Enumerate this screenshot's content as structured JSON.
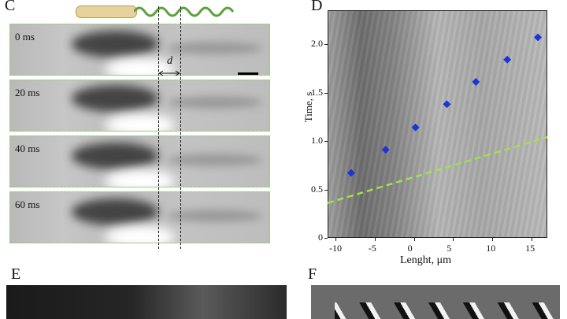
{
  "panels": {
    "c_label": "C",
    "d_label": "D",
    "e_label": "E",
    "f_label": "F"
  },
  "frames": [
    {
      "label": "0 ms"
    },
    {
      "label": "20 ms"
    },
    {
      "label": "40 ms"
    },
    {
      "label": "60 ms"
    }
  ],
  "distance_label": "d",
  "chart_data": {
    "type": "scatter",
    "xlabel": "Lenght, μm",
    "ylabel": "Time, s",
    "xlim": [
      -11,
      17
    ],
    "ylim": [
      0,
      2.35
    ],
    "xticks": [
      -10,
      -5,
      0,
      5,
      10,
      15
    ],
    "yticks": [
      0,
      0.5,
      1.0,
      1.5,
      2.0
    ],
    "xtick_labels": [
      "-10",
      "-5",
      "0",
      "5",
      "10",
      "15"
    ],
    "ytick_labels": [
      "0",
      "0.5",
      "1.0",
      "1.5",
      "2.0"
    ],
    "series": [
      {
        "x": [
          -8.0,
          -3.6,
          0.2,
          4.2,
          7.9,
          11.9,
          15.8
        ],
        "y": [
          0.67,
          0.91,
          1.14,
          1.38,
          1.61,
          1.84,
          2.07
        ],
        "color": "#1a35d6"
      }
    ],
    "lines": [
      {
        "x": [
          -11,
          17
        ],
        "y": [
          0.36,
          1.04
        ],
        "style": "dashed",
        "color": "#9ee34a"
      }
    ]
  }
}
